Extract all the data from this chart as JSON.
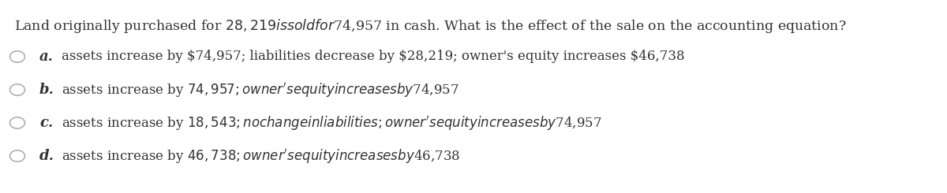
{
  "background_color": "#ffffff",
  "question": "Land originally purchased for $28,219 is sold for $74,957 in cash. What is the effect of the sale on the accounting equation?",
  "question_fontsize": 12.5,
  "options": [
    {
      "label": "a.",
      "text": "assets increase by $74,957; liabilities decrease by $28,219; owner's equity increases $46,738"
    },
    {
      "label": "b.",
      "text": "assets increase by $74,957; owner's equity increases by $74,957"
    },
    {
      "label": "c.",
      "text": "assets increase by $18,543; no change in liabilities; owner's equity increases by $74,957"
    },
    {
      "label": "d.",
      "text": "assets increase by $46,738; owner's equity increases by $46,738"
    }
  ],
  "option_fontsize": 12.0,
  "label_fontsize": 13.0,
  "text_color": "#333333",
  "circle_color": "#aaaaaa",
  "font_family": "serif"
}
